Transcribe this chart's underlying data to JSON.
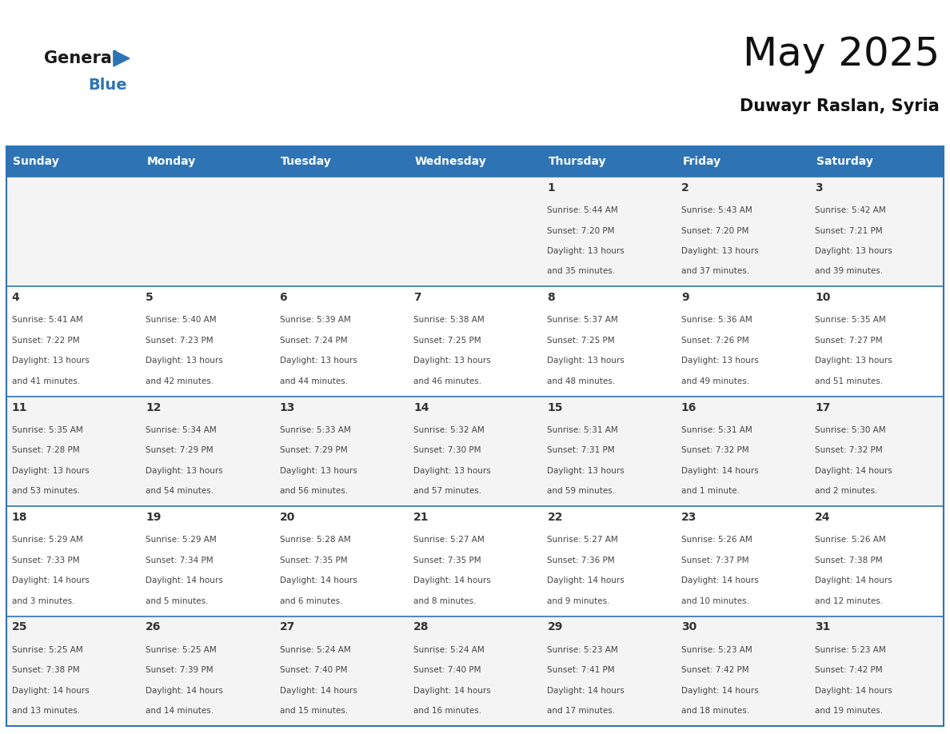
{
  "title": "May 2025",
  "subtitle": "Duwayr Raslan, Syria",
  "header_bg": "#2E74B5",
  "header_text_color": "#FFFFFF",
  "day_number_color": "#333333",
  "text_color": "#444444",
  "border_color": "#2E74B5",
  "days_of_week": [
    "Sunday",
    "Monday",
    "Tuesday",
    "Wednesday",
    "Thursday",
    "Friday",
    "Saturday"
  ],
  "calendar": [
    [
      {
        "day": "",
        "sunrise": "",
        "sunset": "",
        "daylight_hours": 0,
        "daylight_minutes": 0
      },
      {
        "day": "",
        "sunrise": "",
        "sunset": "",
        "daylight_hours": 0,
        "daylight_minutes": 0
      },
      {
        "day": "",
        "sunrise": "",
        "sunset": "",
        "daylight_hours": 0,
        "daylight_minutes": 0
      },
      {
        "day": "",
        "sunrise": "",
        "sunset": "",
        "daylight_hours": 0,
        "daylight_minutes": 0
      },
      {
        "day": "1",
        "sunrise": "5:44 AM",
        "sunset": "7:20 PM",
        "daylight_hours": 13,
        "daylight_minutes": 35
      },
      {
        "day": "2",
        "sunrise": "5:43 AM",
        "sunset": "7:20 PM",
        "daylight_hours": 13,
        "daylight_minutes": 37
      },
      {
        "day": "3",
        "sunrise": "5:42 AM",
        "sunset": "7:21 PM",
        "daylight_hours": 13,
        "daylight_minutes": 39
      }
    ],
    [
      {
        "day": "4",
        "sunrise": "5:41 AM",
        "sunset": "7:22 PM",
        "daylight_hours": 13,
        "daylight_minutes": 41
      },
      {
        "day": "5",
        "sunrise": "5:40 AM",
        "sunset": "7:23 PM",
        "daylight_hours": 13,
        "daylight_minutes": 42
      },
      {
        "day": "6",
        "sunrise": "5:39 AM",
        "sunset": "7:24 PM",
        "daylight_hours": 13,
        "daylight_minutes": 44
      },
      {
        "day": "7",
        "sunrise": "5:38 AM",
        "sunset": "7:25 PM",
        "daylight_hours": 13,
        "daylight_minutes": 46
      },
      {
        "day": "8",
        "sunrise": "5:37 AM",
        "sunset": "7:25 PM",
        "daylight_hours": 13,
        "daylight_minutes": 48
      },
      {
        "day": "9",
        "sunrise": "5:36 AM",
        "sunset": "7:26 PM",
        "daylight_hours": 13,
        "daylight_minutes": 49
      },
      {
        "day": "10",
        "sunrise": "5:35 AM",
        "sunset": "7:27 PM",
        "daylight_hours": 13,
        "daylight_minutes": 51
      }
    ],
    [
      {
        "day": "11",
        "sunrise": "5:35 AM",
        "sunset": "7:28 PM",
        "daylight_hours": 13,
        "daylight_minutes": 53
      },
      {
        "day": "12",
        "sunrise": "5:34 AM",
        "sunset": "7:29 PM",
        "daylight_hours": 13,
        "daylight_minutes": 54
      },
      {
        "day": "13",
        "sunrise": "5:33 AM",
        "sunset": "7:29 PM",
        "daylight_hours": 13,
        "daylight_minutes": 56
      },
      {
        "day": "14",
        "sunrise": "5:32 AM",
        "sunset": "7:30 PM",
        "daylight_hours": 13,
        "daylight_minutes": 57
      },
      {
        "day": "15",
        "sunrise": "5:31 AM",
        "sunset": "7:31 PM",
        "daylight_hours": 13,
        "daylight_minutes": 59
      },
      {
        "day": "16",
        "sunrise": "5:31 AM",
        "sunset": "7:32 PM",
        "daylight_hours": 14,
        "daylight_minutes": 1
      },
      {
        "day": "17",
        "sunrise": "5:30 AM",
        "sunset": "7:32 PM",
        "daylight_hours": 14,
        "daylight_minutes": 2
      }
    ],
    [
      {
        "day": "18",
        "sunrise": "5:29 AM",
        "sunset": "7:33 PM",
        "daylight_hours": 14,
        "daylight_minutes": 3
      },
      {
        "day": "19",
        "sunrise": "5:29 AM",
        "sunset": "7:34 PM",
        "daylight_hours": 14,
        "daylight_minutes": 5
      },
      {
        "day": "20",
        "sunrise": "5:28 AM",
        "sunset": "7:35 PM",
        "daylight_hours": 14,
        "daylight_minutes": 6
      },
      {
        "day": "21",
        "sunrise": "5:27 AM",
        "sunset": "7:35 PM",
        "daylight_hours": 14,
        "daylight_minutes": 8
      },
      {
        "day": "22",
        "sunrise": "5:27 AM",
        "sunset": "7:36 PM",
        "daylight_hours": 14,
        "daylight_minutes": 9
      },
      {
        "day": "23",
        "sunrise": "5:26 AM",
        "sunset": "7:37 PM",
        "daylight_hours": 14,
        "daylight_minutes": 10
      },
      {
        "day": "24",
        "sunrise": "5:26 AM",
        "sunset": "7:38 PM",
        "daylight_hours": 14,
        "daylight_minutes": 12
      }
    ],
    [
      {
        "day": "25",
        "sunrise": "5:25 AM",
        "sunset": "7:38 PM",
        "daylight_hours": 14,
        "daylight_minutes": 13
      },
      {
        "day": "26",
        "sunrise": "5:25 AM",
        "sunset": "7:39 PM",
        "daylight_hours": 14,
        "daylight_minutes": 14
      },
      {
        "day": "27",
        "sunrise": "5:24 AM",
        "sunset": "7:40 PM",
        "daylight_hours": 14,
        "daylight_minutes": 15
      },
      {
        "day": "28",
        "sunrise": "5:24 AM",
        "sunset": "7:40 PM",
        "daylight_hours": 14,
        "daylight_minutes": 16
      },
      {
        "day": "29",
        "sunrise": "5:23 AM",
        "sunset": "7:41 PM",
        "daylight_hours": 14,
        "daylight_minutes": 17
      },
      {
        "day": "30",
        "sunrise": "5:23 AM",
        "sunset": "7:42 PM",
        "daylight_hours": 14,
        "daylight_minutes": 18
      },
      {
        "day": "31",
        "sunrise": "5:23 AM",
        "sunset": "7:42 PM",
        "daylight_hours": 14,
        "daylight_minutes": 19
      }
    ]
  ],
  "logo_general_color": "#1a1a1a",
  "logo_blue_color": "#2E74B5",
  "title_fontsize": 36,
  "subtitle_fontsize": 15,
  "header_fontsize": 10,
  "day_number_fontsize": 10,
  "cell_fontsize": 7.5
}
